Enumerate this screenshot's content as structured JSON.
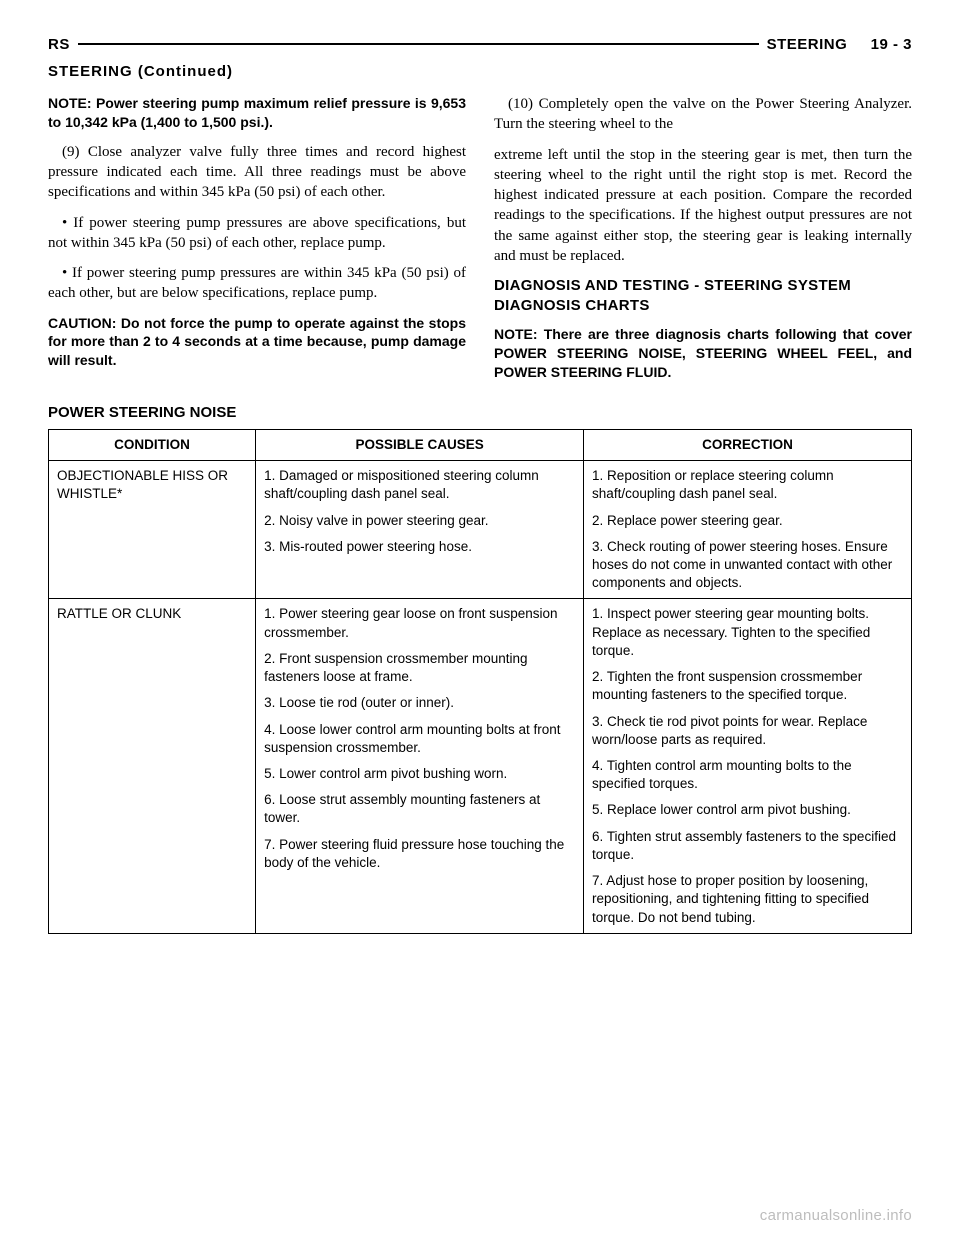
{
  "header": {
    "left": "RS",
    "right_section": "STEERING",
    "right_page": "19 - 3"
  },
  "cont_heading": "STEERING (Continued)",
  "left_col": {
    "note1": "NOTE: Power steering pump maximum relief pressure is 9,653 to 10,342 kPa (1,400 to 1,500 psi.).",
    "p9": "(9) Close analyzer valve fully three times and record highest pressure indicated each time. All three readings must be above specifications and within 345 kPa (50 psi) of each other.",
    "b1": "• If power steering pump pressures are above specifications, but not within 345 kPa (50 psi) of each other, replace pump.",
    "b2": "• If power steering pump pressures are within 345 kPa (50 psi) of each other, but are below specifications, replace pump.",
    "caution": "CAUTION: Do not force the pump to operate against the stops for more than 2 to 4 seconds at a time because, pump damage will result.",
    "p10": "(10) Completely open the valve on the Power Steering Analyzer. Turn the steering wheel to the"
  },
  "right_col": {
    "p10_cont": "extreme left until the stop in the steering gear is met, then turn the steering wheel to the right until the right stop is met. Record the highest indicated pressure at each position. Compare the recorded readings to the specifications. If the highest output pressures are not the same against either stop, the steering gear is leaking internally and must be replaced.",
    "h3": "DIAGNOSIS AND TESTING - STEERING SYSTEM DIAGNOSIS CHARTS",
    "note2": "NOTE: There are three diagnosis charts following that cover POWER STEERING NOISE, STEERING WHEEL FEEL, and POWER STEERING FLUID."
  },
  "table": {
    "title": "POWER STEERING NOISE",
    "headers": [
      "CONDITION",
      "POSSIBLE CAUSES",
      "CORRECTION"
    ],
    "col_widths": [
      "24%",
      "38%",
      "38%"
    ],
    "rows": [
      {
        "condition": "OBJECTIONABLE HISS OR WHISTLE*",
        "causes": [
          "1. Damaged or mispositioned steering column shaft/coupling dash panel seal.",
          "2. Noisy valve in power steering gear.",
          "3. Mis-routed power steering hose."
        ],
        "corrections": [
          "1. Reposition or replace steering column shaft/coupling dash panel seal.",
          "2. Replace power steering gear.",
          "3. Check routing of power steering hoses. Ensure hoses do not come in unwanted contact with other components and objects."
        ]
      },
      {
        "condition": "RATTLE OR CLUNK",
        "causes": [
          "1. Power steering gear loose on front suspension crossmember.",
          "2. Front suspension crossmember mounting fasteners loose at frame.",
          "3. Loose tie rod (outer or inner).",
          "4. Loose lower control arm mounting bolts at front suspension crossmember.",
          "5. Lower control arm pivot bushing worn.",
          "6. Loose strut assembly mounting fasteners at tower.",
          "7. Power steering fluid pressure hose touching the body of the vehicle."
        ],
        "corrections": [
          "1. Inspect power steering gear mounting bolts. Replace as necessary. Tighten to the specified torque.",
          "2. Tighten the front suspension crossmember mounting fasteners to the specified torque.",
          "3. Check tie rod pivot points for wear. Replace worn/loose parts as required.",
          "4. Tighten control arm mounting bolts to the specified torques.",
          "5. Replace lower control arm pivot bushing.",
          "6. Tighten strut assembly fasteners to the specified torque.",
          "7. Adjust hose to proper position by loosening, repositioning, and tightening fitting to specified torque. Do not bend tubing."
        ]
      }
    ]
  },
  "watermark": "carmanualsonline.info"
}
